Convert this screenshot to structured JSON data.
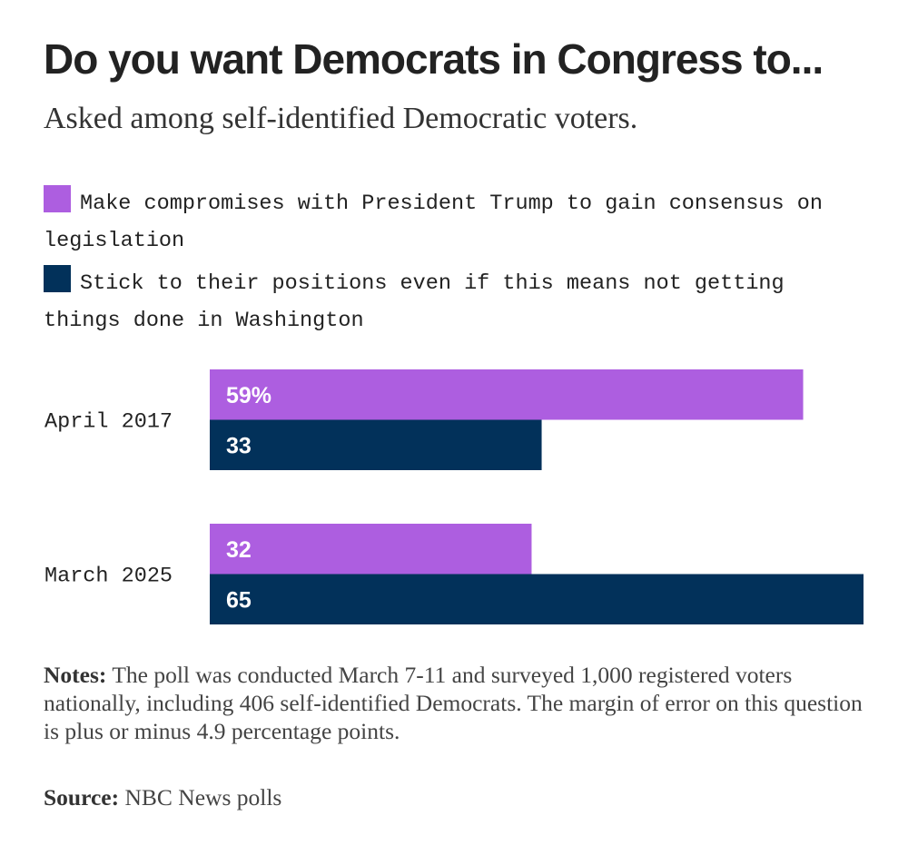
{
  "header": {
    "title": "Do you want Democrats in Congress to...",
    "subtitle": "Asked among self-identified Democratic voters."
  },
  "legend": [
    {
      "label": "Make compromises with President Trump to gain consensus on legislation",
      "color": "#ad5ee0"
    },
    {
      "label": "Stick to their positions even if this means not getting things done in Washington",
      "color": "#02315a"
    }
  ],
  "chart_data": {
    "type": "bar",
    "orientation": "horizontal",
    "categories": [
      "April 2017",
      "March 2025"
    ],
    "series": [
      {
        "name": "Make compromises with President Trump to gain consensus on legislation",
        "values": [
          59,
          32
        ],
        "labels": [
          "59%",
          "32"
        ],
        "color": "#ad5ee0"
      },
      {
        "name": "Stick to their positions even if this means not getting things done in Washington",
        "values": [
          33,
          65
        ],
        "labels": [
          "33",
          "65"
        ],
        "color": "#02315a"
      }
    ],
    "title": "Do you want Democrats in Congress to...",
    "subtitle": "Asked among self-identified Democratic voters.",
    "xlabel": "",
    "ylabel": "",
    "xlim": [
      0,
      65
    ],
    "grid": false,
    "legend_position": "top"
  },
  "footer": {
    "notes_label": "Notes:",
    "notes_text": "The poll was conducted March 7-11 and surveyed 1,000 registered voters nationally, including 406 self-identified Democrats. The margin of error on this question is plus or minus 4.9 percentage points.",
    "source_label": "Source:",
    "source_text": "NBC News polls"
  }
}
